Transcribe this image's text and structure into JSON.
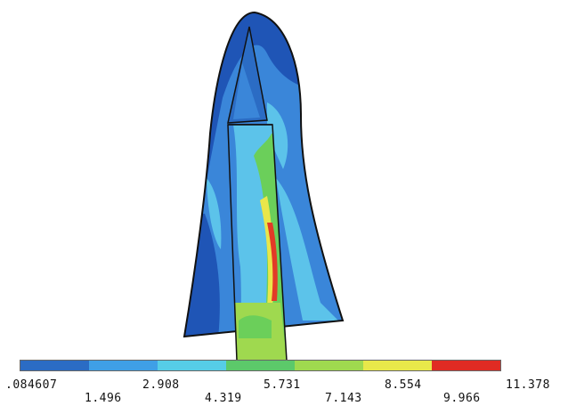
{
  "legend": {
    "colors": [
      "#2b6cc4",
      "#3f9fe6",
      "#56cde7",
      "#5cc96a",
      "#9fd94f",
      "#e8e84a",
      "#e02b23"
    ],
    "ticks_upper": [
      ".084607",
      "2.908",
      "5.731",
      "8.554",
      "11.378"
    ],
    "ticks_lower": [
      "1.496",
      "4.319",
      "7.143",
      "9.966"
    ]
  },
  "fill_colors": {
    "dark_blue": "#1f55b6",
    "mid_blue": "#3a86d9",
    "light_blue": "#5cc3ea",
    "cyan": "#6fd9e8",
    "green": "#6bcf5a",
    "yellow": "#e9e64a",
    "red": "#e23a27"
  }
}
